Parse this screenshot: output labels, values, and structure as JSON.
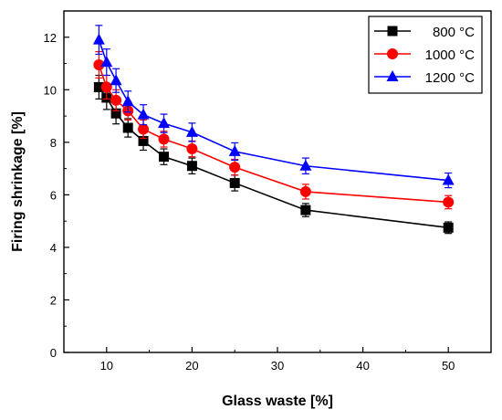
{
  "chart_data": {
    "type": "scatter",
    "xlabel": "Glass waste [%]",
    "ylabel": "Firing shrinkage [%]",
    "xlim": [
      5,
      55
    ],
    "ylim": [
      0,
      13
    ],
    "xticks": [
      10,
      20,
      30,
      40,
      50
    ],
    "yticks": [
      0,
      2,
      4,
      6,
      8,
      10,
      12
    ],
    "grid": false,
    "legend_position": "top-right",
    "x": [
      9.1,
      10,
      11.1,
      12.5,
      14.3,
      16.7,
      20,
      25,
      33.3,
      50
    ],
    "series": [
      {
        "name": "800 °C",
        "marker": "square",
        "color": "#000000",
        "values": [
          10.1,
          9.7,
          9.1,
          8.55,
          8.05,
          7.45,
          7.1,
          6.45,
          5.42,
          4.75
        ],
        "errors": [
          0.45,
          0.45,
          0.4,
          0.35,
          0.35,
          0.3,
          0.3,
          0.3,
          0.25,
          0.22
        ]
      },
      {
        "name": "1000 °C",
        "marker": "circle",
        "color": "#ff0000",
        "values": [
          10.95,
          10.1,
          9.6,
          9.2,
          8.5,
          8.12,
          7.75,
          7.05,
          6.12,
          5.72
        ],
        "errors": [
          0.5,
          0.45,
          0.4,
          0.35,
          0.35,
          0.3,
          0.3,
          0.3,
          0.28,
          0.25
        ]
      },
      {
        "name": "1200 °C",
        "marker": "triangle",
        "color": "#0000ff",
        "values": [
          11.9,
          11.05,
          10.35,
          9.55,
          9.05,
          8.72,
          8.38,
          7.65,
          7.1,
          6.55
        ],
        "errors": [
          0.55,
          0.5,
          0.45,
          0.4,
          0.38,
          0.35,
          0.35,
          0.33,
          0.3,
          0.28
        ]
      }
    ]
  }
}
